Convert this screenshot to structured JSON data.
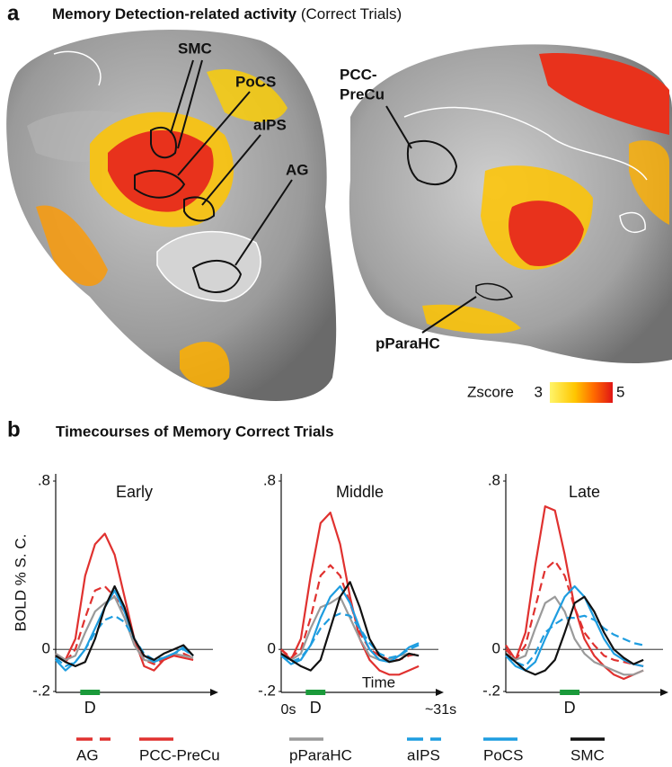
{
  "panel_a": {
    "label": "a",
    "title": "Memory Detection-related activity",
    "subtitle": "(Correct Trials)",
    "regions": {
      "smc": "SMC",
      "pocs": "PoCS",
      "aips": "aIPS",
      "ag": "AG",
      "pcc": [
        "PCC-",
        "PreCu"
      ],
      "pparahc": "pParaHC"
    },
    "colorbar": {
      "label": "Zscore",
      "min": 3,
      "max": 5
    }
  },
  "panel_b": {
    "label": "b",
    "title": "Timecourses of Memory Correct Trials",
    "ylabel": "BOLD % S. C."
  },
  "chart_data": [
    {
      "type": "line",
      "title": "Early",
      "x": [
        0,
        2,
        4,
        6,
        8,
        10,
        12,
        14,
        16,
        18,
        20,
        22,
        24,
        26,
        28
      ],
      "xlim": [
        0,
        32
      ],
      "ylim": [
        -0.2,
        0.8
      ],
      "yticks": [
        {
          "value": 0.8,
          "label": ".8"
        },
        0,
        {
          "value": -0.2,
          "label": "-.2"
        }
      ],
      "stimulus": {
        "label": "D",
        "start": 5,
        "end": 9
      },
      "series": [
        {
          "name": "AG",
          "color": "#e0312f",
          "dashed": true,
          "values": [
            -0.03,
            -0.06,
            0.0,
            0.15,
            0.28,
            0.3,
            0.25,
            0.18,
            0.05,
            -0.05,
            -0.07,
            -0.05,
            -0.03,
            -0.02,
            -0.04
          ]
        },
        {
          "name": "PCC-PreCu",
          "color": "#e0312f",
          "dashed": false,
          "values": [
            -0.02,
            -0.05,
            0.05,
            0.35,
            0.5,
            0.55,
            0.45,
            0.25,
            0.05,
            -0.08,
            -0.1,
            -0.05,
            -0.03,
            -0.04,
            -0.05
          ]
        },
        {
          "name": "pParaHC",
          "color": "#9a9a9a",
          "dashed": false,
          "values": [
            -0.02,
            -0.05,
            -0.03,
            0.08,
            0.18,
            0.22,
            0.25,
            0.15,
            0.02,
            -0.05,
            -0.06,
            -0.04,
            -0.02,
            -0.03,
            -0.04
          ]
        },
        {
          "name": "aIPS",
          "color": "#1e9de0",
          "dashed": true,
          "values": [
            -0.04,
            -0.08,
            -0.06,
            0.0,
            0.08,
            0.14,
            0.16,
            0.13,
            0.05,
            -0.02,
            -0.05,
            -0.04,
            -0.02,
            0.0,
            -0.03
          ]
        },
        {
          "name": "PoCS",
          "color": "#1e9de0",
          "dashed": false,
          "values": [
            -0.05,
            -0.1,
            -0.06,
            0.0,
            0.1,
            0.2,
            0.28,
            0.18,
            0.05,
            -0.03,
            -0.06,
            -0.04,
            -0.02,
            0.01,
            -0.03
          ]
        },
        {
          "name": "SMC",
          "color": "#111111",
          "dashed": false,
          "values": [
            -0.03,
            -0.06,
            -0.08,
            -0.06,
            0.05,
            0.2,
            0.3,
            0.2,
            0.05,
            -0.03,
            -0.05,
            -0.02,
            0.0,
            0.02,
            -0.03
          ]
        }
      ]
    },
    {
      "type": "line",
      "title": "Middle",
      "x": [
        0,
        2,
        4,
        6,
        8,
        10,
        12,
        14,
        16,
        18,
        20,
        22,
        24,
        26,
        28
      ],
      "xlim": [
        0,
        32
      ],
      "xlabel": "Time",
      "xticks": [
        {
          "value": 0,
          "label": "0s"
        },
        {
          "value": 31,
          "label": "~31s"
        }
      ],
      "ylim": [
        -0.2,
        0.8
      ],
      "yticks": [
        {
          "value": 0.8,
          "label": ".8"
        },
        0,
        {
          "value": -0.2,
          "label": "-.2"
        }
      ],
      "stimulus": {
        "label": "D",
        "start": 5,
        "end": 9
      },
      "series": [
        {
          "name": "AG",
          "color": "#e0312f",
          "dashed": true,
          "values": [
            0.0,
            -0.04,
            0.0,
            0.15,
            0.35,
            0.4,
            0.35,
            0.22,
            0.08,
            0.0,
            -0.03,
            -0.05,
            -0.05,
            -0.03,
            -0.02
          ]
        },
        {
          "name": "PCC-PreCu",
          "color": "#e0312f",
          "dashed": false,
          "values": [
            0.0,
            -0.05,
            0.05,
            0.35,
            0.6,
            0.65,
            0.5,
            0.25,
            0.05,
            -0.05,
            -0.1,
            -0.12,
            -0.12,
            -0.1,
            -0.08
          ]
        },
        {
          "name": "pParaHC",
          "color": "#9a9a9a",
          "dashed": false,
          "values": [
            -0.02,
            -0.05,
            -0.02,
            0.1,
            0.2,
            0.22,
            0.25,
            0.15,
            0.05,
            -0.03,
            -0.05,
            -0.05,
            -0.03,
            -0.02,
            -0.03
          ]
        },
        {
          "name": "aIPS",
          "color": "#1e9de0",
          "dashed": true,
          "values": [
            -0.03,
            -0.06,
            -0.04,
            0.02,
            0.1,
            0.15,
            0.17,
            0.16,
            0.1,
            0.03,
            -0.02,
            -0.04,
            -0.03,
            0.0,
            0.02
          ]
        },
        {
          "name": "PoCS",
          "color": "#1e9de0",
          "dashed": false,
          "values": [
            -0.03,
            -0.07,
            -0.05,
            0.02,
            0.15,
            0.25,
            0.3,
            0.22,
            0.1,
            0.0,
            -0.05,
            -0.06,
            -0.03,
            0.01,
            0.03
          ]
        },
        {
          "name": "SMC",
          "color": "#111111",
          "dashed": false,
          "values": [
            -0.02,
            -0.05,
            -0.08,
            -0.1,
            -0.05,
            0.1,
            0.25,
            0.32,
            0.2,
            0.05,
            -0.03,
            -0.06,
            -0.05,
            -0.02,
            -0.03
          ]
        }
      ]
    },
    {
      "type": "line",
      "title": "Late",
      "x": [
        0,
        2,
        4,
        6,
        8,
        10,
        12,
        14,
        16,
        18,
        20,
        22,
        24,
        26,
        28
      ],
      "xlim": [
        0,
        32
      ],
      "ylim": [
        -0.2,
        0.8
      ],
      "yticks": [
        {
          "value": 0.8,
          "label": ".8"
        },
        0,
        {
          "value": -0.2,
          "label": "-.2"
        }
      ],
      "stimulus": {
        "label": "D",
        "start": 11,
        "end": 15
      },
      "series": [
        {
          "name": "AG",
          "color": "#e0312f",
          "dashed": true,
          "values": [
            0.0,
            -0.05,
            0.02,
            0.2,
            0.38,
            0.42,
            0.35,
            0.2,
            0.08,
            0.02,
            -0.03,
            -0.05,
            -0.06,
            -0.07,
            -0.08
          ]
        },
        {
          "name": "PCC-PreCu",
          "color": "#e0312f",
          "dashed": false,
          "values": [
            0.02,
            -0.05,
            0.08,
            0.4,
            0.68,
            0.66,
            0.45,
            0.2,
            0.05,
            -0.03,
            -0.08,
            -0.12,
            -0.14,
            -0.12,
            -0.1
          ]
        },
        {
          "name": "pParaHC",
          "color": "#9a9a9a",
          "dashed": false,
          "values": [
            -0.02,
            -0.05,
            -0.03,
            0.1,
            0.22,
            0.25,
            0.18,
            0.05,
            -0.02,
            -0.06,
            -0.08,
            -0.1,
            -0.12,
            -0.12,
            -0.1
          ]
        },
        {
          "name": "aIPS",
          "color": "#1e9de0",
          "dashed": true,
          "values": [
            -0.03,
            -0.06,
            -0.08,
            -0.02,
            0.08,
            0.12,
            0.15,
            0.15,
            0.16,
            0.14,
            0.1,
            0.07,
            0.05,
            0.03,
            0.02
          ]
        },
        {
          "name": "PoCS",
          "color": "#1e9de0",
          "dashed": false,
          "values": [
            -0.03,
            -0.08,
            -0.1,
            -0.06,
            0.05,
            0.15,
            0.25,
            0.3,
            0.25,
            0.15,
            0.05,
            -0.02,
            -0.05,
            -0.07,
            -0.08
          ]
        },
        {
          "name": "SMC",
          "color": "#111111",
          "dashed": false,
          "values": [
            -0.02,
            -0.06,
            -0.1,
            -0.12,
            -0.1,
            -0.05,
            0.08,
            0.22,
            0.25,
            0.18,
            0.08,
            0.0,
            -0.04,
            -0.07,
            -0.05
          ]
        }
      ]
    }
  ]
}
